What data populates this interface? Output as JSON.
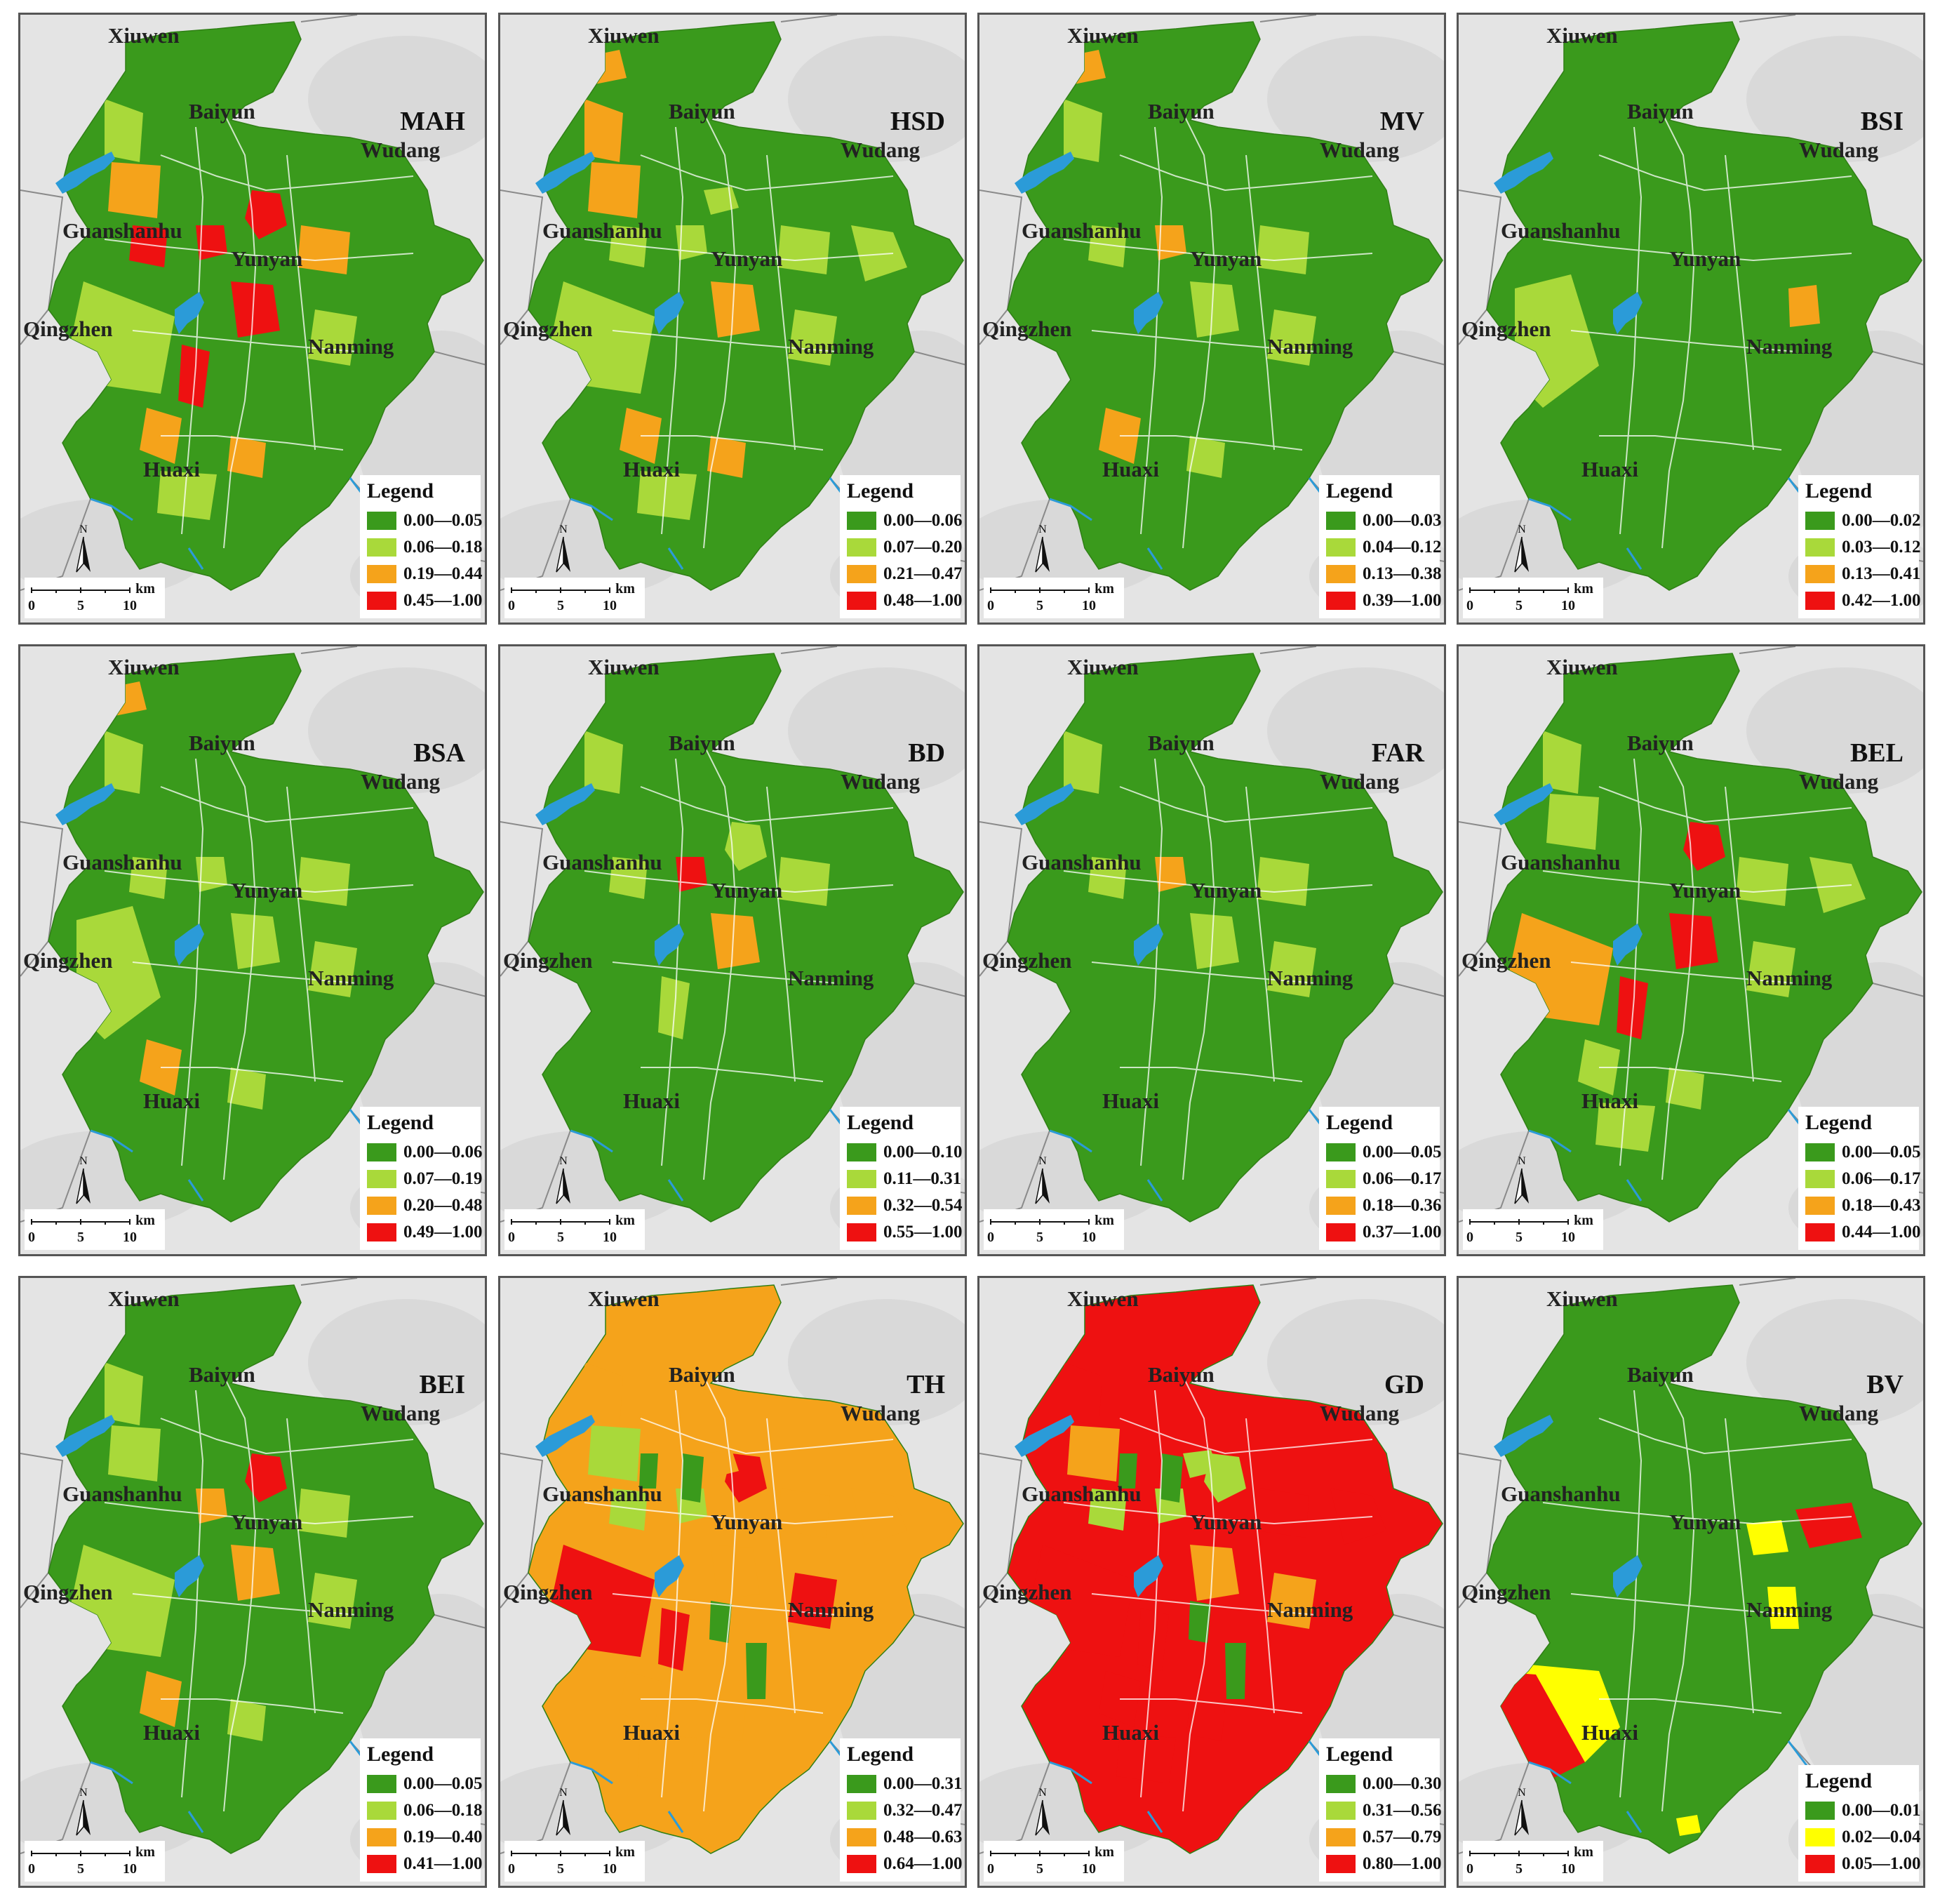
{
  "district_labels": {
    "xiuwen": "Xiuwen",
    "baiyun": "Baiyun",
    "wudang": "Wudang",
    "guanshanhu": "Guanshanhu",
    "yunyan": "Yunyan",
    "qingzhen": "Qingzhen",
    "nanming": "Nanming",
    "huaxi": "Huaxi"
  },
  "legend_title": "Legend",
  "north_label": "N",
  "scale": {
    "ticks": [
      "0",
      "5",
      "10"
    ],
    "unit": "km"
  },
  "colors": {
    "green": "#3a9a1c",
    "lightgreen": "#a9d93a",
    "orange": "#f5a31b",
    "red": "#ee1111",
    "yellow": "#ffff00",
    "water": "#2b9bd8",
    "background": "#e4e4e4"
  },
  "panels": [
    {
      "title": "MAH",
      "classes": [
        "0.00—0.05",
        "0.06—0.18",
        "0.19—0.44",
        "0.45—1.00"
      ],
      "class_colors": [
        "#3a9a1c",
        "#a9d93a",
        "#f5a31b",
        "#ee1111"
      ]
    },
    {
      "title": "HSD",
      "classes": [
        "0.00—0.06",
        "0.07—0.20",
        "0.21—0.47",
        "0.48—1.00"
      ],
      "class_colors": [
        "#3a9a1c",
        "#a9d93a",
        "#f5a31b",
        "#ee1111"
      ]
    },
    {
      "title": "MV",
      "classes": [
        "0.00—0.03",
        "0.04—0.12",
        "0.13—0.38",
        "0.39—1.00"
      ],
      "class_colors": [
        "#3a9a1c",
        "#a9d93a",
        "#f5a31b",
        "#ee1111"
      ]
    },
    {
      "title": "BSI",
      "classes": [
        "0.00—0.02",
        "0.03—0.12",
        "0.13—0.41",
        "0.42—1.00"
      ],
      "class_colors": [
        "#3a9a1c",
        "#a9d93a",
        "#f5a31b",
        "#ee1111"
      ]
    },
    {
      "title": "BSA",
      "classes": [
        "0.00—0.06",
        "0.07—0.19",
        "0.20—0.48",
        "0.49—1.00"
      ],
      "class_colors": [
        "#3a9a1c",
        "#a9d93a",
        "#f5a31b",
        "#ee1111"
      ]
    },
    {
      "title": "BD",
      "classes": [
        "0.00—0.10",
        "0.11—0.31",
        "0.32—0.54",
        "0.55—1.00"
      ],
      "class_colors": [
        "#3a9a1c",
        "#a9d93a",
        "#f5a31b",
        "#ee1111"
      ]
    },
    {
      "title": "FAR",
      "classes": [
        "0.00—0.05",
        "0.06—0.17",
        "0.18—0.36",
        "0.37—1.00"
      ],
      "class_colors": [
        "#3a9a1c",
        "#a9d93a",
        "#f5a31b",
        "#ee1111"
      ]
    },
    {
      "title": "BEL",
      "classes": [
        "0.00—0.05",
        "0.06—0.17",
        "0.18—0.43",
        "0.44—1.00"
      ],
      "class_colors": [
        "#3a9a1c",
        "#a9d93a",
        "#f5a31b",
        "#ee1111"
      ]
    },
    {
      "title": "BEI",
      "classes": [
        "0.00—0.05",
        "0.06—0.18",
        "0.19—0.40",
        "0.41—1.00"
      ],
      "class_colors": [
        "#3a9a1c",
        "#a9d93a",
        "#f5a31b",
        "#ee1111"
      ]
    },
    {
      "title": "TH",
      "classes": [
        "0.00—0.31",
        "0.32—0.47",
        "0.48—0.63",
        "0.64—1.00"
      ],
      "class_colors": [
        "#3a9a1c",
        "#a9d93a",
        "#f5a31b",
        "#ee1111"
      ]
    },
    {
      "title": "GD",
      "classes": [
        "0.00—0.30",
        "0.31—0.56",
        "0.57—0.79",
        "0.80—1.00"
      ],
      "class_colors": [
        "#3a9a1c",
        "#a9d93a",
        "#f5a31b",
        "#ee1111"
      ]
    },
    {
      "title": "BV",
      "classes": [
        "0.00—0.01",
        "0.02—0.04",
        "0.05—1.00"
      ],
      "class_colors": [
        "#3a9a1c",
        "#ffff00",
        "#ee1111"
      ]
    }
  ]
}
